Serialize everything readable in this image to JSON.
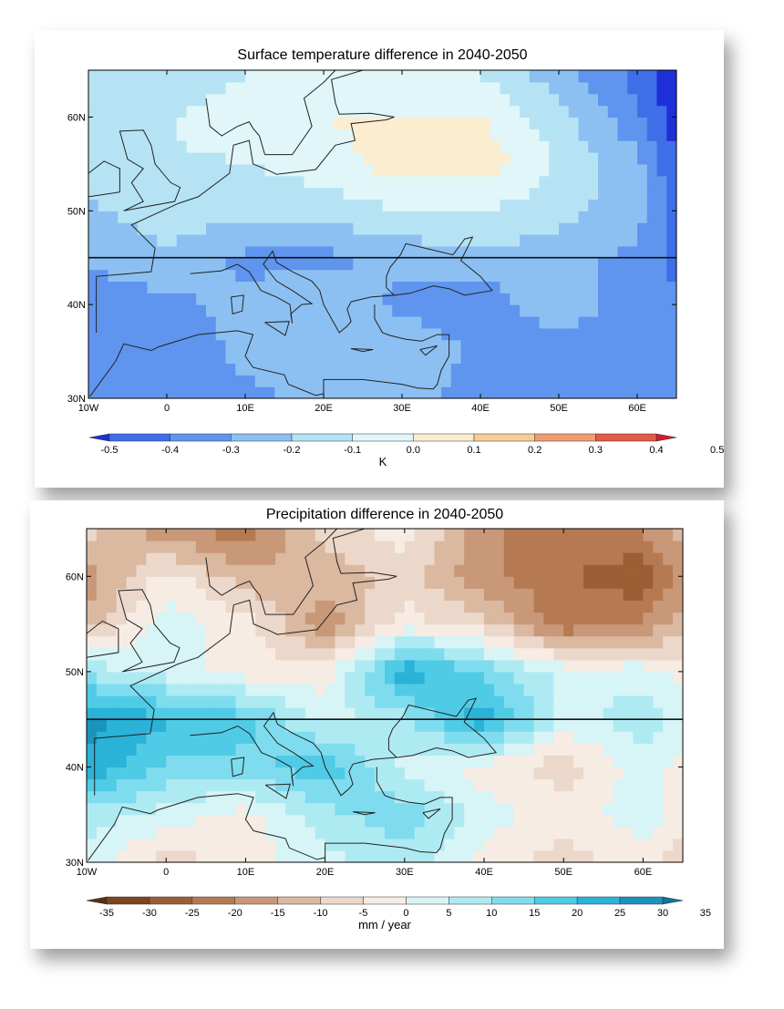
{
  "chart_data": [
    {
      "type": "heatmap",
      "title": "Surface temperature difference in 2040-2050",
      "x_ticks": [
        "10W",
        "0",
        "10E",
        "20E",
        "30E",
        "40E",
        "50E",
        "60E"
      ],
      "x_tick_values": [
        -10,
        0,
        10,
        20,
        30,
        40,
        50,
        60
      ],
      "y_ticks": [
        "30N",
        "40N",
        "50N",
        "60N"
      ],
      "y_tick_values": [
        30,
        40,
        50,
        60
      ],
      "xlim": [
        -10,
        65
      ],
      "ylim": [
        30,
        65
      ],
      "reference_line_lat": 45,
      "colorbar": {
        "unit": "K",
        "labels": [
          "-0.5",
          "-0.4",
          "-0.3",
          "-0.2",
          "-0.1",
          "0.0",
          "0.1",
          "0.2",
          "0.3",
          "0.4",
          "0.5"
        ],
        "colors": [
          "#1e2fd8",
          "#3f6ee8",
          "#5f95ee",
          "#8cc0f2",
          "#b5e3f4",
          "#e0f6f8",
          "#fbeed0",
          "#f6cd98",
          "#ee9d70",
          "#e35a48",
          "#d21c2c"
        ]
      },
      "field": {
        "lon": [
          -10,
          0,
          10,
          20,
          30,
          40,
          50,
          60,
          65
        ],
        "lat": [
          30,
          35,
          40,
          45,
          50,
          55,
          60,
          65
        ],
        "values": [
          [
            -0.25,
            -0.3,
            -0.25,
            -0.2,
            -0.15,
            -0.3,
            -0.3,
            -0.25,
            -0.3
          ],
          [
            -0.25,
            -0.3,
            -0.2,
            -0.15,
            -0.15,
            -0.25,
            -0.3,
            -0.3,
            -0.3
          ],
          [
            -0.3,
            -0.25,
            -0.2,
            -0.15,
            -0.25,
            -0.3,
            -0.15,
            -0.3,
            -0.3
          ],
          [
            -0.2,
            -0.15,
            -0.25,
            -0.25,
            -0.2,
            -0.15,
            -0.2,
            -0.25,
            -0.35
          ],
          [
            -0.15,
            -0.1,
            -0.1,
            -0.1,
            -0.05,
            -0.05,
            -0.1,
            -0.2,
            -0.35
          ],
          [
            -0.1,
            -0.05,
            -0.05,
            0.0,
            0.1,
            0.1,
            -0.05,
            -0.2,
            -0.4
          ],
          [
            -0.1,
            -0.05,
            0.0,
            0.05,
            0.05,
            0.05,
            -0.1,
            -0.3,
            -0.45
          ],
          [
            -0.1,
            -0.1,
            -0.05,
            0.0,
            0.0,
            -0.05,
            -0.2,
            -0.35,
            -0.5
          ]
        ]
      }
    },
    {
      "type": "heatmap",
      "title": "Precipitation difference in 2040-2050",
      "x_ticks": [
        "10W",
        "0",
        "10E",
        "20E",
        "30E",
        "40E",
        "50E",
        "60E"
      ],
      "x_tick_values": [
        -10,
        0,
        10,
        20,
        30,
        40,
        50,
        60
      ],
      "y_ticks": [
        "30N",
        "40N",
        "50N",
        "60N"
      ],
      "y_tick_values": [
        30,
        40,
        50,
        60
      ],
      "xlim": [
        -10,
        65
      ],
      "ylim": [
        30,
        65
      ],
      "reference_line_lat": 45,
      "colorbar": {
        "unit": "mm / year",
        "labels": [
          "-35",
          "-30",
          "-25",
          "-20",
          "-15",
          "-10",
          "-5",
          "0",
          "5",
          "10",
          "15",
          "20",
          "25",
          "30",
          "35"
        ],
        "colors": [
          "#5a2f10",
          "#7c4520",
          "#9b5e35",
          "#b67a52",
          "#c99878",
          "#dbb8a0",
          "#ecd8ca",
          "#f6ece4",
          "#d7f4f7",
          "#aeeaf2",
          "#7fdcee",
          "#4fcbe6",
          "#2ab2d8",
          "#1a93bd",
          "#0f7599"
        ]
      },
      "field": {
        "lon": [
          -10,
          0,
          10,
          20,
          30,
          40,
          50,
          60,
          65
        ],
        "lat": [
          30,
          35,
          40,
          45,
          50,
          55,
          60,
          65
        ],
        "values": [
          [
            5,
            -5,
            0,
            5,
            10,
            0,
            -5,
            0,
            -5
          ],
          [
            10,
            5,
            0,
            10,
            15,
            5,
            0,
            5,
            0
          ],
          [
            25,
            15,
            15,
            20,
            5,
            0,
            -5,
            5,
            0
          ],
          [
            28,
            22,
            18,
            5,
            10,
            25,
            5,
            10,
            5
          ],
          [
            10,
            5,
            0,
            0,
            25,
            15,
            5,
            5,
            0
          ],
          [
            -10,
            5,
            0,
            -15,
            0,
            -5,
            -20,
            -15,
            -10
          ],
          [
            -15,
            0,
            -10,
            -10,
            -5,
            -15,
            -20,
            -25,
            -15
          ],
          [
            -5,
            -15,
            -20,
            -5,
            0,
            -15,
            -20,
            -15,
            -10
          ]
        ]
      }
    }
  ]
}
